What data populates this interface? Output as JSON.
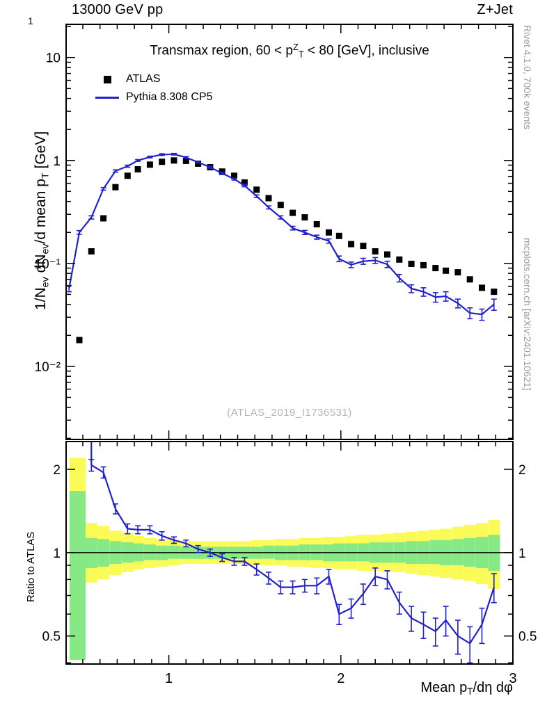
{
  "header": {
    "left": "13000 GeV pp",
    "right": "Z+Jet"
  },
  "title_parts": [
    {
      "t": "Transmax region, 60 < p"
    },
    {
      "t": "Z",
      "sup": true
    },
    {
      "t": "T",
      "sub": true
    },
    {
      "t": " < 80 [GeV], inclusive"
    }
  ],
  "legend": {
    "items": [
      {
        "label": "ATLAS",
        "marker": "square",
        "color": "#000000"
      },
      {
        "label": "Pythia 8.308 CP5",
        "marker": "line",
        "color": "#2020cc"
      }
    ]
  },
  "watermark": "(ATLAS_2019_I1736531)",
  "side_notes": {
    "top": "Rivet 4.1.0,  700k events",
    "bottom": "mcplots.cern.ch [arXiv:2401.10621]"
  },
  "axes": {
    "main_y_exponent": "1",
    "main_y_label_parts": [
      {
        "t": "1/N"
      },
      {
        "t": "ev",
        "sub": true
      },
      {
        "t": " dN"
      },
      {
        "t": "ev",
        "sub": true
      },
      {
        "t": "/d mean p"
      },
      {
        "t": "T",
        "sub": true
      },
      {
        "t": " [GeV]"
      }
    ],
    "ratio_y_label": "Ratio to ATLAS",
    "x_label_parts": [
      {
        "t": "Mean p"
      },
      {
        "t": "T",
        "sub": true
      },
      {
        "t": "/dη dφ"
      }
    ]
  },
  "chart_data": [
    {
      "id": "main",
      "type": "line",
      "title": "Transmax region, 60 < pT^Z < 80 [GeV], inclusive",
      "xlabel": "Mean pT/dη dφ",
      "ylabel": "1/Nev dNev/d mean pT [GeV]⁻¹",
      "xscale": "linear",
      "yscale": "log",
      "xlim": [
        0.403,
        3.0
      ],
      "ylim": [
        0.00195,
        21
      ],
      "x_ticks": [
        {
          "v": 1
        },
        {
          "v": 2
        },
        {
          "v": 3
        }
      ],
      "x_minor_step": 0.1,
      "y_ticks": [
        {
          "v": 10,
          "label": "10"
        },
        {
          "v": 1,
          "label": "1"
        },
        {
          "v": 0.1,
          "label": "10⁻¹"
        },
        {
          "v": 0.01,
          "label": "10⁻²"
        }
      ],
      "legend_position": "top-left",
      "grid": false,
      "series": [
        {
          "name": "ATLAS",
          "style": "scatter-square",
          "color": "#000000",
          "points": [
            [
              0.48,
              0.018
            ],
            [
              0.55,
              0.131
            ],
            [
              0.62,
              0.274
            ],
            [
              0.69,
              0.55
            ],
            [
              0.76,
              0.71
            ],
            [
              0.82,
              0.82
            ],
            [
              0.89,
              0.91
            ],
            [
              0.96,
              0.97
            ],
            [
              1.03,
              1.0
            ],
            [
              1.1,
              0.99
            ],
            [
              1.17,
              0.93
            ],
            [
              1.24,
              0.86
            ],
            [
              1.31,
              0.78
            ],
            [
              1.38,
              0.71
            ],
            [
              1.44,
              0.61
            ],
            [
              1.51,
              0.52
            ],
            [
              1.58,
              0.43
            ],
            [
              1.65,
              0.37
            ],
            [
              1.72,
              0.31
            ],
            [
              1.79,
              0.28
            ],
            [
              1.86,
              0.24
            ],
            [
              1.93,
              0.2
            ],
            [
              1.99,
              0.185
            ],
            [
              2.06,
              0.154
            ],
            [
              2.13,
              0.148
            ],
            [
              2.2,
              0.131
            ],
            [
              2.27,
              0.122
            ],
            [
              2.34,
              0.109
            ],
            [
              2.41,
              0.099
            ],
            [
              2.48,
              0.096
            ],
            [
              2.55,
              0.09
            ],
            [
              2.61,
              0.085
            ],
            [
              2.68,
              0.082
            ],
            [
              2.75,
              0.07
            ],
            [
              2.82,
              0.058
            ],
            [
              2.89,
              0.053
            ]
          ]
        },
        {
          "name": "Pythia 8.308 CP5",
          "style": "line-errorbar",
          "color": "#2020cc",
          "points": [
            [
              0.42,
              0.057,
              0.004
            ],
            [
              0.48,
              0.2,
              0.008
            ],
            [
              0.55,
              0.28,
              0.01
            ],
            [
              0.62,
              0.53,
              0.015
            ],
            [
              0.69,
              0.79,
              0.02
            ],
            [
              0.76,
              0.88,
              0.02
            ],
            [
              0.82,
              1.0,
              0.02
            ],
            [
              0.89,
              1.08,
              0.02
            ],
            [
              0.96,
              1.14,
              0.02
            ],
            [
              1.03,
              1.15,
              0.02
            ],
            [
              1.1,
              1.07,
              0.02
            ],
            [
              1.17,
              0.96,
              0.02
            ],
            [
              1.24,
              0.86,
              0.02
            ],
            [
              1.31,
              0.75,
              0.02
            ],
            [
              1.38,
              0.66,
              0.015
            ],
            [
              1.44,
              0.57,
              0.015
            ],
            [
              1.51,
              0.45,
              0.013
            ],
            [
              1.58,
              0.35,
              0.012
            ],
            [
              1.65,
              0.28,
              0.01
            ],
            [
              1.72,
              0.22,
              0.009
            ],
            [
              1.79,
              0.2,
              0.009
            ],
            [
              1.86,
              0.18,
              0.008
            ],
            [
              1.93,
              0.165,
              0.008
            ],
            [
              1.99,
              0.111,
              0.007
            ],
            [
              2.06,
              0.097,
              0.006
            ],
            [
              2.13,
              0.105,
              0.007
            ],
            [
              2.2,
              0.107,
              0.007
            ],
            [
              2.27,
              0.098,
              0.007
            ],
            [
              2.34,
              0.072,
              0.006
            ],
            [
              2.41,
              0.057,
              0.005
            ],
            [
              2.48,
              0.053,
              0.005
            ],
            [
              2.55,
              0.047,
              0.005
            ],
            [
              2.61,
              0.048,
              0.005
            ],
            [
              2.68,
              0.041,
              0.004
            ],
            [
              2.75,
              0.033,
              0.004
            ],
            [
              2.82,
              0.032,
              0.004
            ],
            [
              2.89,
              0.04,
              0.005
            ]
          ]
        }
      ]
    },
    {
      "id": "ratio",
      "type": "line",
      "title": "",
      "ylabel": "Ratio to ATLAS",
      "xscale": "linear",
      "yscale": "log",
      "xlim": [
        0.403,
        3.0
      ],
      "ylim": [
        0.396,
        2.52
      ],
      "x_ticks": [
        {
          "v": 1,
          "label": "1"
        },
        {
          "v": 2,
          "label": "2"
        },
        {
          "v": 3,
          "label": "3"
        }
      ],
      "x_minor_step": 0.1,
      "y_ticks": [
        {
          "v": 2,
          "label": "2"
        },
        {
          "v": 1,
          "label": "1"
        },
        {
          "v": 0.5,
          "label": "0.5"
        }
      ],
      "y_labels_both": true,
      "reference_line": 1,
      "band_halfwidth": 0.0345,
      "bands": {
        "yellow": {
          "color": "#fbfb57",
          "bins": [
            [
              0.47,
              0.76,
              2.2,
              0.047
            ],
            [
              0.55,
              0.78,
              1.28
            ],
            [
              0.62,
              0.8,
              1.25
            ],
            [
              0.69,
              0.83,
              1.2
            ],
            [
              0.76,
              0.85,
              1.18
            ],
            [
              0.82,
              0.87,
              1.15
            ],
            [
              0.89,
              0.88,
              1.13
            ],
            [
              0.96,
              0.89,
              1.12
            ],
            [
              1.03,
              0.9,
              1.11
            ],
            [
              1.1,
              0.91,
              1.1
            ],
            [
              1.17,
              0.91,
              1.1
            ],
            [
              1.24,
              0.91,
              1.1
            ],
            [
              1.31,
              0.91,
              1.1
            ],
            [
              1.38,
              0.91,
              1.1
            ],
            [
              1.44,
              0.91,
              1.1
            ],
            [
              1.51,
              0.9,
              1.11
            ],
            [
              1.58,
              0.9,
              1.11
            ],
            [
              1.65,
              0.9,
              1.12
            ],
            [
              1.72,
              0.89,
              1.12
            ],
            [
              1.79,
              0.89,
              1.13
            ],
            [
              1.86,
              0.88,
              1.13
            ],
            [
              1.93,
              0.88,
              1.14
            ],
            [
              1.99,
              0.87,
              1.14
            ],
            [
              2.06,
              0.87,
              1.15
            ],
            [
              2.13,
              0.86,
              1.16
            ],
            [
              2.2,
              0.86,
              1.16
            ],
            [
              2.27,
              0.85,
              1.17
            ],
            [
              2.34,
              0.85,
              1.18
            ],
            [
              2.41,
              0.84,
              1.19
            ],
            [
              2.48,
              0.83,
              1.2
            ],
            [
              2.55,
              0.82,
              1.21
            ],
            [
              2.61,
              0.81,
              1.22
            ],
            [
              2.68,
              0.8,
              1.24
            ],
            [
              2.75,
              0.79,
              1.26
            ],
            [
              2.82,
              0.77,
              1.28
            ],
            [
              2.89,
              0.74,
              1.31
            ]
          ]
        },
        "green": {
          "color": "#86e986",
          "bins": [
            [
              0.47,
              0.41,
              1.67,
              0.047
            ],
            [
              0.55,
              0.88,
              1.13
            ],
            [
              0.62,
              0.89,
              1.12
            ],
            [
              0.69,
              0.91,
              1.1
            ],
            [
              0.76,
              0.92,
              1.09
            ],
            [
              0.82,
              0.93,
              1.08
            ],
            [
              0.89,
              0.94,
              1.07
            ],
            [
              0.96,
              0.94,
              1.06
            ],
            [
              1.03,
              0.95,
              1.06
            ],
            [
              1.1,
              0.95,
              1.05
            ],
            [
              1.17,
              0.95,
              1.05
            ],
            [
              1.24,
              0.95,
              1.05
            ],
            [
              1.31,
              0.95,
              1.05
            ],
            [
              1.38,
              0.95,
              1.05
            ],
            [
              1.44,
              0.95,
              1.05
            ],
            [
              1.51,
              0.95,
              1.05
            ],
            [
              1.58,
              0.95,
              1.06
            ],
            [
              1.65,
              0.94,
              1.06
            ],
            [
              1.72,
              0.94,
              1.06
            ],
            [
              1.79,
              0.94,
              1.07
            ],
            [
              1.86,
              0.94,
              1.07
            ],
            [
              1.93,
              0.93,
              1.07
            ],
            [
              1.99,
              0.93,
              1.08
            ],
            [
              2.06,
              0.93,
              1.08
            ],
            [
              2.13,
              0.93,
              1.08
            ],
            [
              2.2,
              0.92,
              1.09
            ],
            [
              2.27,
              0.92,
              1.09
            ],
            [
              2.34,
              0.92,
              1.09
            ],
            [
              2.41,
              0.91,
              1.1
            ],
            [
              2.48,
              0.91,
              1.1
            ],
            [
              2.55,
              0.91,
              1.11
            ],
            [
              2.61,
              0.9,
              1.11
            ],
            [
              2.68,
              0.9,
              1.12
            ],
            [
              2.75,
              0.89,
              1.13
            ],
            [
              2.82,
              0.88,
              1.14
            ],
            [
              2.89,
              0.86,
              1.16
            ]
          ]
        }
      },
      "series": [
        {
          "name": "Pythia 8.308 CP5 / ATLAS",
          "style": "line-errorbar",
          "color": "#2020cc",
          "points": [
            [
              0.55,
              2.6,
              0
            ],
            [
              0.55,
              2.07,
              0.1
            ],
            [
              0.62,
              1.95,
              0.09
            ],
            [
              0.69,
              1.44,
              0.06
            ],
            [
              0.76,
              1.22,
              0.05
            ],
            [
              0.82,
              1.21,
              0.04
            ],
            [
              0.89,
              1.21,
              0.04
            ],
            [
              0.96,
              1.15,
              0.04
            ],
            [
              1.03,
              1.11,
              0.03
            ],
            [
              1.1,
              1.08,
              0.03
            ],
            [
              1.17,
              1.03,
              0.03
            ],
            [
              1.24,
              1.0,
              0.03
            ],
            [
              1.31,
              0.96,
              0.03
            ],
            [
              1.38,
              0.93,
              0.03
            ],
            [
              1.44,
              0.93,
              0.03
            ],
            [
              1.51,
              0.87,
              0.04
            ],
            [
              1.58,
              0.81,
              0.04
            ],
            [
              1.65,
              0.75,
              0.04
            ],
            [
              1.72,
              0.75,
              0.04
            ],
            [
              1.79,
              0.76,
              0.04
            ],
            [
              1.86,
              0.76,
              0.05
            ],
            [
              1.93,
              0.82,
              0.05
            ],
            [
              1.99,
              0.6,
              0.05
            ],
            [
              2.06,
              0.63,
              0.05
            ],
            [
              2.13,
              0.71,
              0.06
            ],
            [
              2.2,
              0.82,
              0.06
            ],
            [
              2.27,
              0.8,
              0.06
            ],
            [
              2.34,
              0.66,
              0.06
            ],
            [
              2.41,
              0.58,
              0.06
            ],
            [
              2.48,
              0.55,
              0.06
            ],
            [
              2.55,
              0.52,
              0.06
            ],
            [
              2.61,
              0.57,
              0.07
            ],
            [
              2.68,
              0.5,
              0.07
            ],
            [
              2.75,
              0.47,
              0.07
            ],
            [
              2.82,
              0.55,
              0.08
            ],
            [
              2.89,
              0.75,
              0.09
            ]
          ]
        }
      ]
    }
  ]
}
